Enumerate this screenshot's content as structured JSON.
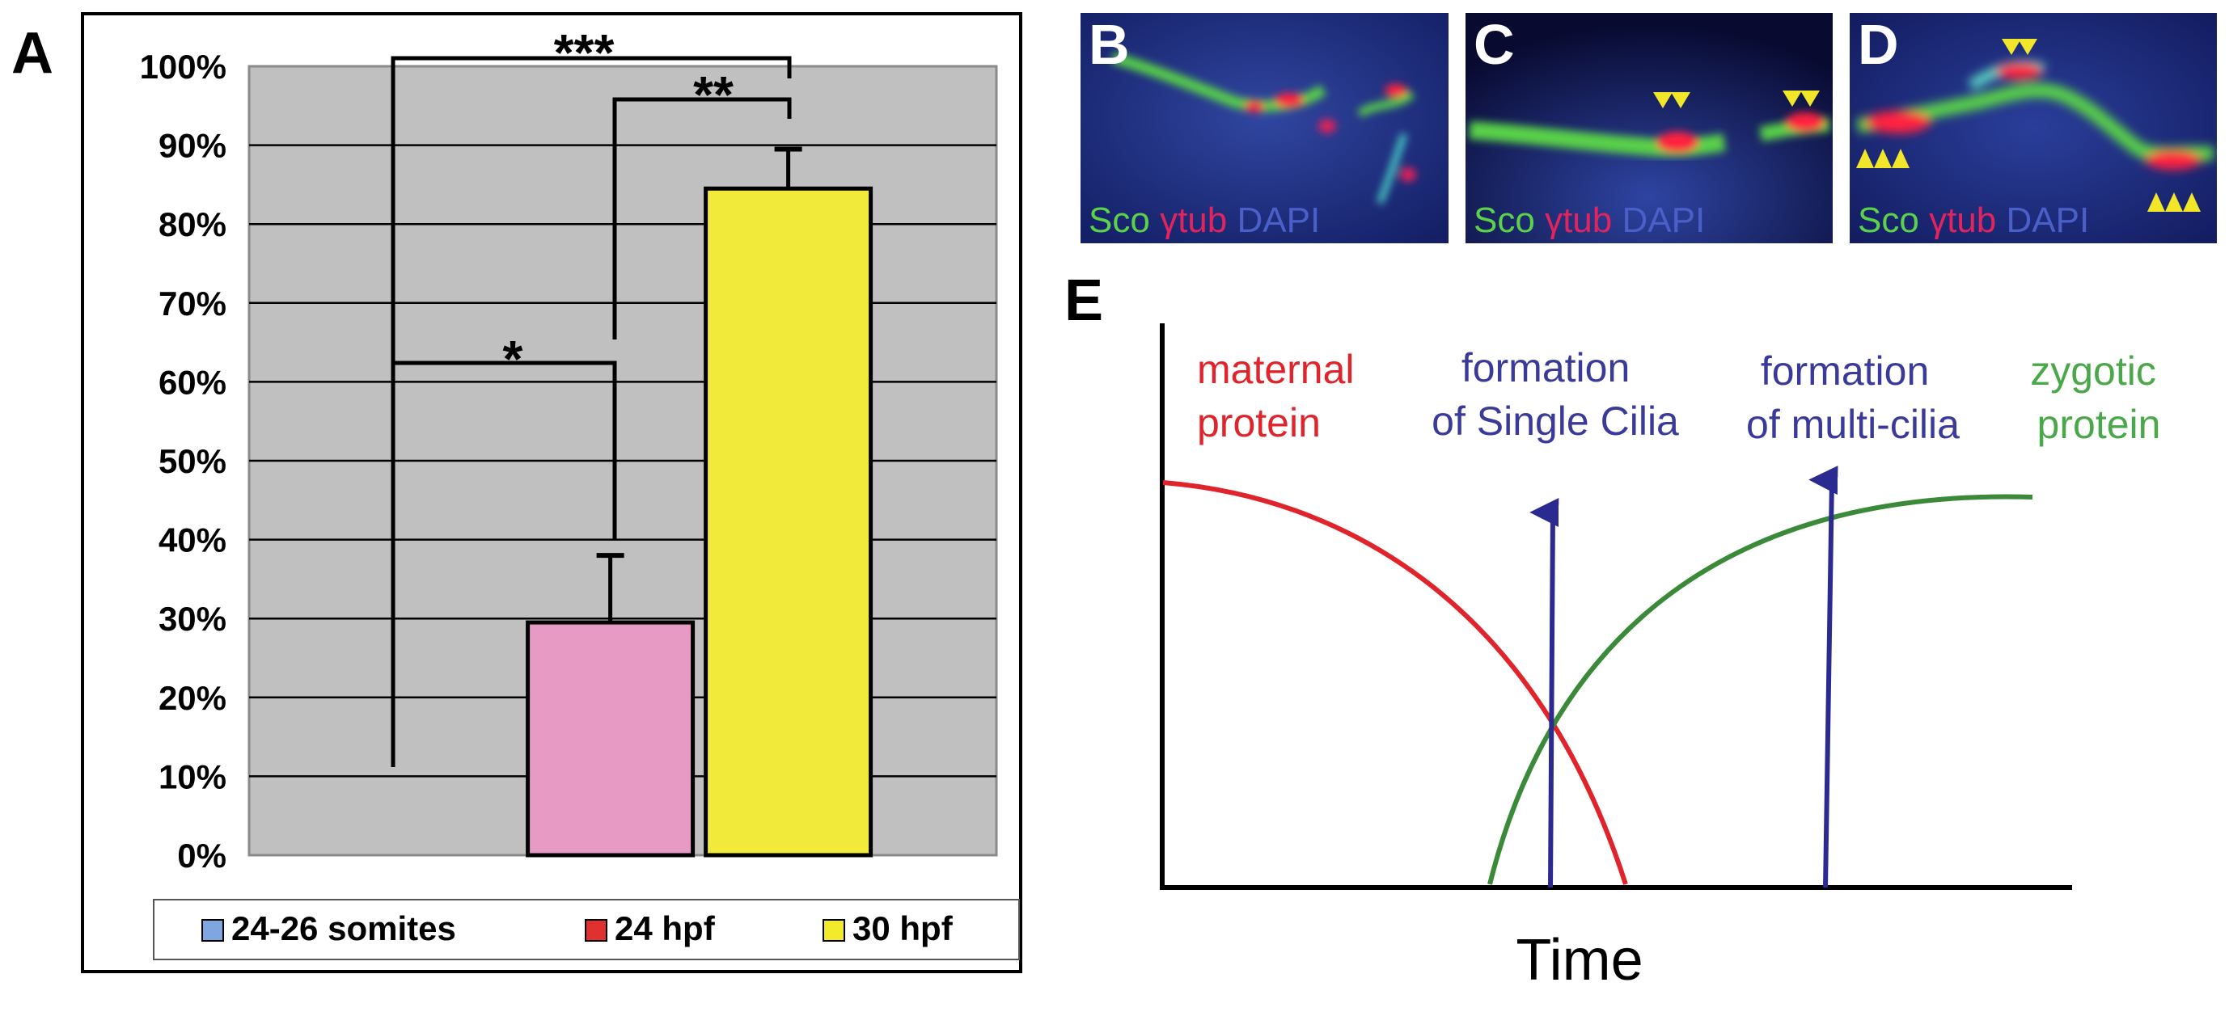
{
  "panel_a": {
    "letter": "A",
    "significance": [
      "***",
      "**",
      "*"
    ],
    "legend": [
      {
        "label": "24-26 somites",
        "color": "#7ea6e0"
      },
      {
        "label": "24 hpf",
        "color": "#e03030"
      },
      {
        "label": "30 hpf",
        "color": "#f2ea2a"
      }
    ]
  },
  "chart_data": [
    {
      "type": "bar",
      "categories": [
        "24-26 somites",
        "24 hpf",
        "30 hpf"
      ],
      "values": [
        0,
        29.5,
        84.5
      ],
      "error": [
        0,
        8.5,
        5
      ],
      "colors": [
        "#7ea6e0",
        "#e69ac4",
        "#f2ea3a"
      ],
      "yticks": [
        "0%",
        "10%",
        "20%",
        "30%",
        "40%",
        "50%",
        "60%",
        "70%",
        "80%",
        "90%",
        "100%"
      ],
      "ylim": [
        0,
        100
      ],
      "grid": true,
      "legend_position": "bottom"
    },
    {
      "type": "line",
      "xlabel": "Time",
      "series": [
        {
          "name": "maternal protein",
          "color": "#e0242c"
        },
        {
          "name": "zygotic protein",
          "color": "#3a8a3a"
        }
      ],
      "annotations": [
        {
          "text": "formation of Single Cilia",
          "color": "#3a3a9a"
        },
        {
          "text": "formation of multi-cilia",
          "color": "#3a3a9a"
        }
      ]
    }
  ],
  "micrographs": [
    {
      "letter": "B",
      "stain": [
        "Sco",
        "γtub",
        "DAPI"
      ]
    },
    {
      "letter": "C",
      "stain": [
        "Sco",
        "γtub",
        "DAPI"
      ]
    },
    {
      "letter": "D",
      "stain": [
        "Sco",
        "γtub",
        "DAPI"
      ]
    }
  ],
  "panel_e": {
    "letter": "E",
    "maternal_lines": [
      "maternal",
      "protein"
    ],
    "single_lines": [
      "formation",
      "of Single Cilia"
    ],
    "multi_lines": [
      "formation",
      "of multi-cilia"
    ],
    "zygotic_lines": [
      "zygotic",
      "protein"
    ],
    "xlabel": "Time"
  }
}
